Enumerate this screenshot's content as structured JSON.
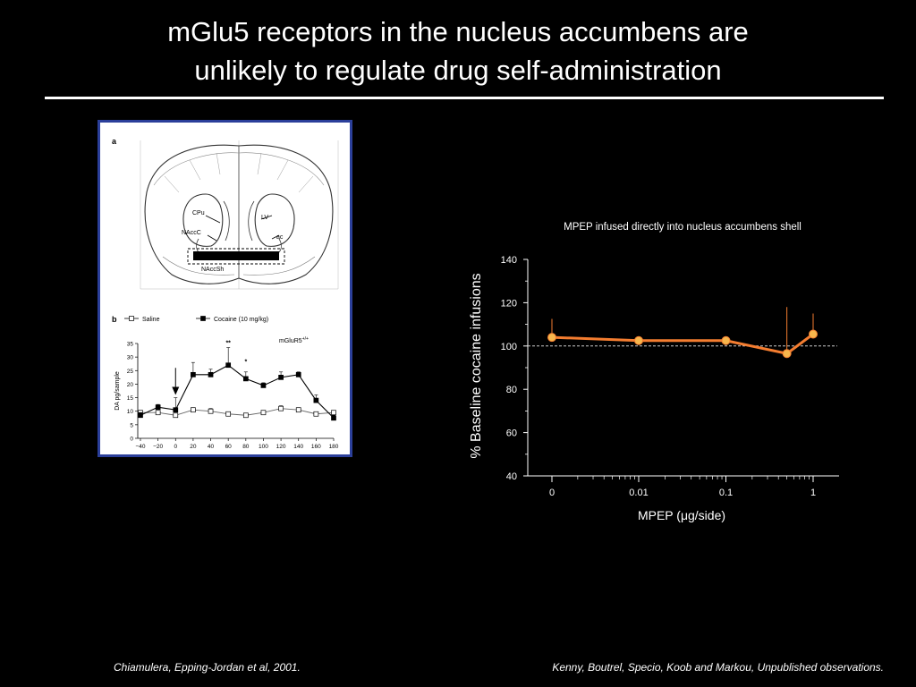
{
  "slide": {
    "title_line1": "mGlu5 receptors in the nucleus accumbens are",
    "title_line2": "unlikely to regulate drug self-administration",
    "citation_left": "Chiamulera, Epping-Jordan et al, 2001.",
    "citation_right": "Kenny, Boutrel, Specio, Koob and Markou, Unpublished observations."
  },
  "figure": {
    "panel_a_label": "a",
    "panel_b_label": "b",
    "brain_labels": {
      "cpu": "CPu",
      "lv": "LV",
      "nacc_core": "NAccC",
      "ac": "ac",
      "nacc_shell": "NAccSh"
    },
    "genotype_label": "mGluR5",
    "genotype_superscript": "+/+",
    "significance_marks": [
      "**",
      "*"
    ]
  },
  "chart_data": [
    {
      "type": "line",
      "panel": "b",
      "ylabel": "DA pg/sample",
      "ylim": [
        0,
        35
      ],
      "yticks": [
        0,
        5,
        10,
        15,
        20,
        25,
        30,
        35
      ],
      "xlim": [
        -40,
        180
      ],
      "xticks": [
        -40,
        -20,
        0,
        20,
        40,
        60,
        80,
        100,
        120,
        140,
        160,
        180
      ],
      "xtick_labels": [
        "−40",
        "−20",
        "0",
        "20",
        "40",
        "60",
        "80",
        "100",
        "120",
        "140",
        "160",
        "180"
      ],
      "legend_position": "top",
      "series": [
        {
          "name": "Saline",
          "marker": "open-square",
          "x": [
            -40,
            -20,
            0,
            20,
            40,
            60,
            80,
            100,
            120,
            140,
            160,
            180
          ],
          "values": [
            9.5,
            9.5,
            8.5,
            10.5,
            10,
            9,
            8.5,
            9.5,
            11,
            10.5,
            9,
            9.5
          ],
          "errors": [
            0.8,
            0.8,
            0.8,
            0.8,
            1,
            0.8,
            0.8,
            0.8,
            1,
            0.8,
            0.8,
            0.8
          ]
        },
        {
          "name": "Cocaine  (10 mg/kg)",
          "marker": "filled-square",
          "x": [
            -40,
            -20,
            0,
            20,
            40,
            60,
            80,
            100,
            120,
            140,
            160,
            180
          ],
          "values": [
            8.5,
            11.5,
            10.5,
            23.5,
            23.5,
            27,
            22,
            19.5,
            22.5,
            23.5,
            14,
            7.5
          ],
          "errors": [
            1,
            1,
            4.5,
            4.5,
            2,
            6.5,
            2.5,
            1,
            2,
            1,
            2,
            1
          ]
        }
      ],
      "annotations": [
        {
          "text": "**",
          "x": 60,
          "y": 34.5
        },
        {
          "text": "*",
          "x": 80,
          "y": 27.5
        }
      ],
      "injection_arrow_x": 0
    },
    {
      "type": "line",
      "title": "MPEP infused directly into nucleus accumbens shell",
      "xlabel": "MPEP (μg/side)",
      "ylabel": "% Baseline cocaine infusions",
      "ylim": [
        40,
        140
      ],
      "yticks": [
        40,
        60,
        80,
        100,
        120,
        140
      ],
      "xscale": "log (0 plotted at left)",
      "categories": [
        "0",
        "0.01",
        "0.1",
        "1"
      ],
      "reference_line": 100,
      "series": [
        {
          "x": [
            0,
            0.01,
            0.1,
            0.5,
            1
          ],
          "values": [
            104,
            102.5,
            102.5,
            96.5,
            105.5
          ],
          "errors": [
            8.5,
            0,
            0,
            21.5,
            9.5
          ]
        }
      ],
      "series_color": "#f47d30",
      "marker_color": "#f7b74d"
    }
  ]
}
